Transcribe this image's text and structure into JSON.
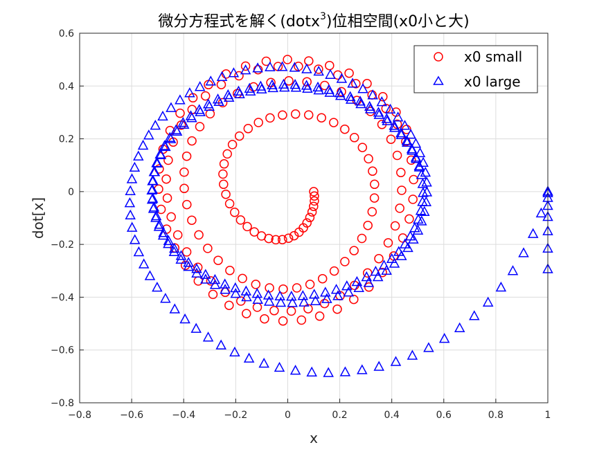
{
  "chart_data": {
    "type": "scatter",
    "title_main": "微分方程式を解く(dotx",
    "title_sup": "3",
    "title_rest": ")位相空間(x0小と大)",
    "xlabel": "x",
    "ylabel": "dot[x]",
    "xlim": [
      -0.8,
      1.0
    ],
    "ylim": [
      -0.8,
      0.6
    ],
    "xticks": [
      -0.8,
      -0.6,
      -0.4,
      -0.2,
      0,
      0.2,
      0.4,
      0.6,
      0.8,
      1
    ],
    "xtick_labels": [
      "−0.8",
      "−0.6",
      "−0.4",
      "−0.2",
      "0",
      "0.2",
      "0.4",
      "0.6",
      "0.8",
      "1"
    ],
    "yticks": [
      -0.8,
      -0.6,
      -0.4,
      -0.2,
      0,
      0.2,
      0.4,
      0.6
    ],
    "ytick_labels": [
      "−0.8",
      "−0.6",
      "−0.4",
      "−0.2",
      "0",
      "0.2",
      "0.4",
      "0.6"
    ],
    "grid": true,
    "legend_position": "top-right",
    "series": [
      {
        "name": "x0 small",
        "marker": "circle",
        "color": "#ff0000",
        "model": {
          "x0": 0.1,
          "v0": 0.0,
          "kind": "anti-damped",
          "growth": 0.7
        },
        "points": []
      },
      {
        "name": "x0 large",
        "marker": "triangle",
        "color": "#0000ff",
        "model": {
          "x0": 1.0,
          "v0": 0.0,
          "kind": "damped",
          "decay": 0.35
        },
        "points": []
      }
    ]
  }
}
